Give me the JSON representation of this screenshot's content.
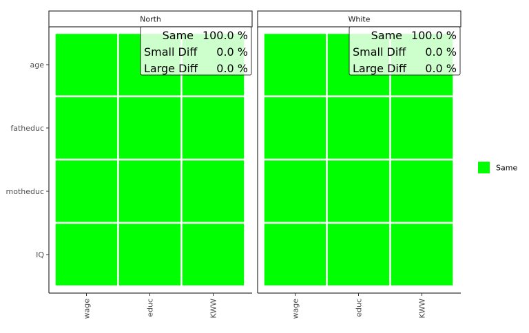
{
  "chart_data": {
    "type": "heatmap",
    "facets": [
      {
        "title": "North",
        "annotation": [
          {
            "label": "Same",
            "value": "100.0 %"
          },
          {
            "label": "Small Diff",
            "value": "0.0 %"
          },
          {
            "label": "Large Diff",
            "value": "0.0 %"
          }
        ]
      },
      {
        "title": "White",
        "annotation": [
          {
            "label": "Same",
            "value": "100.0 %"
          },
          {
            "label": "Small Diff",
            "value": "0.0 %"
          },
          {
            "label": "Large Diff",
            "value": "0.0 %"
          }
        ]
      }
    ],
    "x_categories": [
      "wage",
      "educ",
      "KWW"
    ],
    "y_categories": [
      "age",
      "fatheduc",
      "motheduc",
      "IQ"
    ],
    "cells": [
      [
        "Same",
        "Same",
        "Same"
      ],
      [
        "Same",
        "Same",
        "Same"
      ],
      [
        "Same",
        "Same",
        "Same"
      ],
      [
        "Same",
        "Same",
        "Same"
      ]
    ],
    "legend": {
      "placement": "right",
      "entries": [
        {
          "name": "Same",
          "color": "#00ff00"
        }
      ]
    },
    "grid": false
  }
}
